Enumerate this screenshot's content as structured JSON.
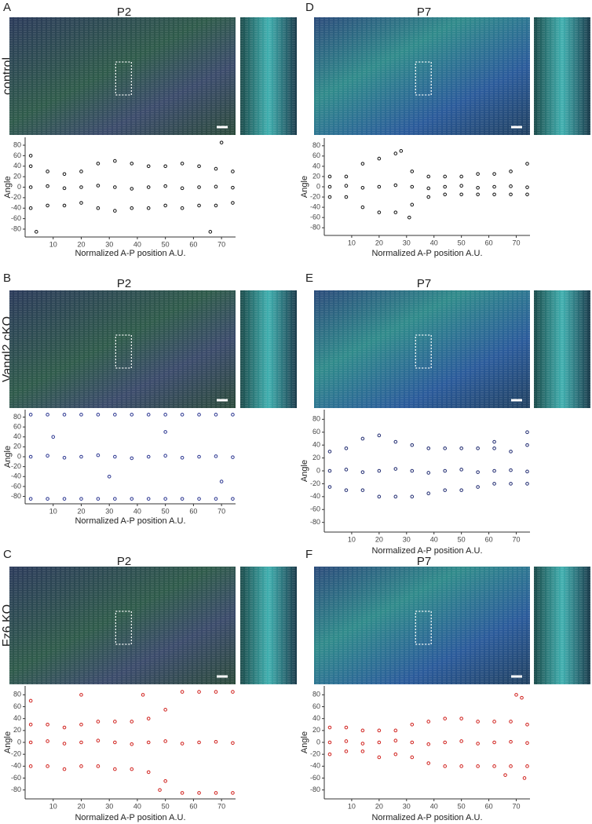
{
  "chart_data": [
    {
      "panel": "A",
      "title": "P2",
      "row_label": "control",
      "type": "scatter",
      "xlabel": "Normalized A-P position A.U.",
      "ylabel": "Angle",
      "color": "#111111",
      "x": [
        2,
        8,
        14,
        20,
        26,
        32,
        38,
        44,
        50,
        56,
        62,
        68,
        74,
        2,
        8,
        14,
        20,
        26,
        32,
        38,
        44,
        50,
        56,
        62,
        68,
        74,
        2,
        8,
        14,
        20,
        26,
        32,
        38,
        44,
        50,
        56,
        62,
        68,
        74,
        2,
        4,
        70,
        66
      ],
      "values": [
        40,
        30,
        25,
        30,
        45,
        50,
        45,
        40,
        40,
        45,
        40,
        35,
        30,
        0,
        2,
        -2,
        0,
        3,
        0,
        -3,
        0,
        2,
        -2,
        0,
        1,
        -1,
        -40,
        -35,
        -35,
        -30,
        -40,
        -45,
        -40,
        -40,
        -35,
        -40,
        -35,
        -35,
        -30,
        60,
        -85,
        85,
        -85
      ],
      "xlim": [
        0,
        75
      ],
      "ylim": [
        -95,
        95
      ],
      "xticks": [
        10,
        20,
        30,
        40,
        50,
        60,
        70
      ],
      "yticks": [
        -80,
        -60,
        -40,
        -20,
        0,
        20,
        40,
        60,
        80
      ]
    },
    {
      "panel": "D",
      "title": "P7",
      "type": "scatter",
      "xlabel": "Normalized A-P position A.U.",
      "ylabel": "Angle",
      "color": "#111111",
      "x": [
        2,
        8,
        14,
        20,
        26,
        32,
        38,
        44,
        50,
        56,
        62,
        68,
        74,
        2,
        8,
        14,
        20,
        26,
        32,
        38,
        44,
        50,
        56,
        62,
        68,
        74,
        2,
        8,
        14,
        20,
        26,
        32,
        38,
        44,
        50,
        56,
        62,
        68,
        74,
        31,
        28
      ],
      "values": [
        20,
        20,
        45,
        55,
        65,
        30,
        20,
        20,
        20,
        25,
        25,
        30,
        45,
        0,
        2,
        -2,
        0,
        3,
        0,
        -3,
        0,
        2,
        -2,
        0,
        1,
        -1,
        -20,
        -20,
        -40,
        -50,
        -50,
        -35,
        -20,
        -15,
        -15,
        -15,
        -15,
        -15,
        -15,
        -60,
        70
      ],
      "xlim": [
        0,
        75
      ],
      "ylim": [
        -95,
        95
      ],
      "xticks": [
        10,
        20,
        30,
        40,
        50,
        60,
        70
      ],
      "yticks": [
        -80,
        -60,
        -40,
        -20,
        0,
        20,
        40,
        60,
        80
      ]
    },
    {
      "panel": "B",
      "title": "P2",
      "row_label": "Vangl2 cKO",
      "type": "scatter",
      "xlabel": "Normalized A-P position A.U.",
      "ylabel": "Angle",
      "color": "#2a3590",
      "x": [
        2,
        8,
        14,
        20,
        26,
        32,
        38,
        44,
        50,
        56,
        62,
        68,
        74,
        2,
        8,
        14,
        20,
        26,
        32,
        38,
        44,
        50,
        56,
        62,
        68,
        74,
        2,
        8,
        14,
        20,
        26,
        32,
        38,
        44,
        50,
        56,
        62,
        68,
        74,
        10,
        30,
        50,
        70
      ],
      "values": [
        85,
        85,
        85,
        85,
        85,
        85,
        85,
        85,
        85,
        85,
        85,
        85,
        85,
        0,
        2,
        -2,
        0,
        3,
        0,
        -3,
        0,
        2,
        -2,
        0,
        1,
        -1,
        -85,
        -85,
        -85,
        -85,
        -85,
        -85,
        -85,
        -85,
        -85,
        -85,
        -85,
        -85,
        -85,
        40,
        -40,
        50,
        -50
      ],
      "xlim": [
        0,
        75
      ],
      "ylim": [
        -95,
        95
      ],
      "xticks": [
        10,
        20,
        30,
        40,
        50,
        60,
        70
      ],
      "yticks": [
        -80,
        -60,
        -40,
        -20,
        0,
        20,
        40,
        60,
        80
      ]
    },
    {
      "panel": "E",
      "title": "P7",
      "type": "scatter",
      "xlabel": "Normalized A-P position A.U.",
      "ylabel": "Angle",
      "color": "#1f2a70",
      "x": [
        2,
        8,
        14,
        20,
        26,
        32,
        38,
        44,
        50,
        56,
        62,
        68,
        74,
        2,
        8,
        14,
        20,
        26,
        32,
        38,
        44,
        50,
        56,
        62,
        68,
        74,
        2,
        8,
        14,
        20,
        26,
        32,
        38,
        44,
        50,
        56,
        62,
        68,
        74,
        74,
        62
      ],
      "values": [
        30,
        35,
        50,
        55,
        45,
        40,
        35,
        35,
        35,
        35,
        35,
        30,
        40,
        0,
        2,
        -2,
        0,
        3,
        0,
        -3,
        0,
        2,
        -2,
        0,
        1,
        -1,
        -25,
        -30,
        -30,
        -40,
        -40,
        -40,
        -35,
        -30,
        -30,
        -25,
        -20,
        -20,
        -20,
        60,
        45
      ],
      "xlim": [
        0,
        75
      ],
      "ylim": [
        -95,
        95
      ],
      "xticks": [
        10,
        20,
        30,
        40,
        50,
        60,
        70
      ],
      "yticks": [
        -80,
        -60,
        -40,
        -20,
        0,
        20,
        40,
        60,
        80
      ]
    },
    {
      "panel": "C",
      "title": "P2",
      "row_label": "Fz6 KO",
      "type": "scatter",
      "xlabel": "Normalized A-P position A.U.",
      "ylabel": "Angle",
      "color": "#d0201c",
      "x": [
        2,
        8,
        14,
        20,
        26,
        32,
        38,
        44,
        50,
        56,
        62,
        68,
        74,
        2,
        8,
        14,
        20,
        26,
        32,
        38,
        44,
        50,
        56,
        62,
        68,
        74,
        2,
        8,
        14,
        20,
        26,
        32,
        38,
        44,
        50,
        56,
        62,
        68,
        74,
        2,
        20,
        42,
        48
      ],
      "values": [
        30,
        30,
        25,
        30,
        35,
        35,
        35,
        40,
        55,
        85,
        85,
        85,
        85,
        0,
        2,
        -2,
        0,
        3,
        0,
        -3,
        0,
        2,
        -2,
        0,
        1,
        -1,
        -40,
        -40,
        -45,
        -40,
        -40,
        -45,
        -45,
        -50,
        -65,
        -85,
        -85,
        -85,
        -85,
        70,
        80,
        80,
        -80
      ],
      "xlim": [
        0,
        75
      ],
      "ylim": [
        -95,
        95
      ],
      "xticks": [
        10,
        20,
        30,
        40,
        50,
        60,
        70
      ],
      "yticks": [
        -80,
        -60,
        -40,
        -20,
        0,
        20,
        40,
        60,
        80
      ]
    },
    {
      "panel": "F",
      "title": "P7",
      "type": "scatter",
      "xlabel": "Normalized A-P position A.U.",
      "ylabel": "Angle",
      "color": "#d0201c",
      "x": [
        2,
        8,
        14,
        20,
        26,
        32,
        38,
        44,
        50,
        56,
        62,
        68,
        74,
        2,
        8,
        14,
        20,
        26,
        32,
        38,
        44,
        50,
        56,
        62,
        68,
        74,
        2,
        8,
        14,
        20,
        26,
        32,
        38,
        44,
        50,
        56,
        62,
        68,
        74,
        70,
        72,
        73,
        66
      ],
      "values": [
        25,
        25,
        20,
        20,
        20,
        30,
        35,
        40,
        40,
        35,
        35,
        35,
        30,
        0,
        2,
        -2,
        0,
        3,
        0,
        -3,
        0,
        2,
        -2,
        0,
        1,
        -1,
        -20,
        -15,
        -15,
        -25,
        -20,
        -25,
        -35,
        -40,
        -40,
        -40,
        -40,
        -40,
        -40,
        80,
        75,
        -60,
        -55
      ],
      "xlim": [
        0,
        75
      ],
      "ylim": [
        -95,
        95
      ],
      "xticks": [
        10,
        20,
        30,
        40,
        50,
        60,
        70
      ],
      "yticks": [
        -80,
        -60,
        -40,
        -20,
        0,
        20,
        40,
        60,
        80
      ]
    }
  ]
}
